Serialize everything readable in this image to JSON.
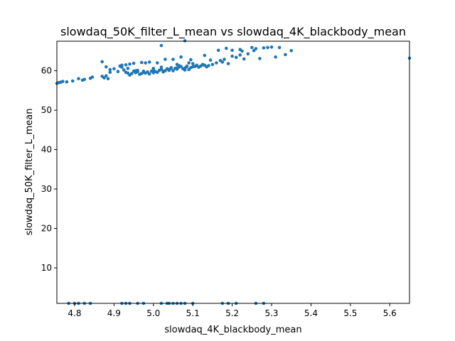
{
  "chart_data": {
    "type": "scatter",
    "title": "slowdaq_50K_filter_L_mean vs slowdaq_4K_blackbody_mean",
    "xlabel": "slowdaq_4K_blackbody_mean",
    "ylabel": "slowdaq_50K_filter_L_mean",
    "xlim": [
      4.755,
      5.65
    ],
    "ylim": [
      1.0,
      67.5
    ],
    "xticks": [
      "4.8",
      "4.9",
      "5.0",
      "5.1",
      "5.2",
      "5.3",
      "5.4",
      "5.5",
      "5.6"
    ],
    "yticks": [
      "10",
      "20",
      "30",
      "40",
      "50",
      "60"
    ],
    "grid": false,
    "marker_color": "#1f77b4",
    "series": [
      {
        "x": [
          4.755,
          4.76,
          4.765,
          4.77,
          4.78,
          4.795,
          4.81,
          4.82,
          4.825,
          4.84,
          4.845,
          4.87,
          4.875,
          4.88,
          4.885,
          4.89,
          4.9,
          4.91,
          4.915,
          4.92,
          4.925,
          4.93,
          4.935,
          4.94,
          4.945,
          4.95,
          4.955,
          4.96,
          4.965,
          4.97,
          4.975,
          4.98,
          4.985,
          4.99,
          4.995,
          5.0,
          5.005,
          5.01,
          5.015,
          5.02,
          5.025,
          5.03,
          5.035,
          5.04,
          5.045,
          5.05,
          5.055,
          5.06,
          5.065,
          5.07,
          5.075,
          5.08,
          5.085,
          5.09,
          5.095,
          5.1,
          5.105,
          5.11,
          5.115,
          5.12,
          5.125,
          5.13,
          5.135,
          5.14,
          5.15,
          5.16,
          5.17,
          5.175,
          5.18,
          5.19,
          5.2,
          5.21,
          5.22,
          5.225,
          5.23,
          5.24,
          5.26,
          5.27,
          5.28,
          5.29,
          5.31,
          5.32,
          5.335,
          5.35,
          5.65,
          4.87,
          4.88,
          4.89,
          4.93,
          4.95,
          4.97,
          4.99,
          5.01,
          5.03,
          5.05,
          5.07,
          5.09,
          5.11,
          5.13,
          4.92,
          4.96,
          5.0,
          5.04,
          5.08,
          5.12,
          4.94,
          4.98,
          5.02,
          5.06,
          5.1,
          4.935,
          4.955,
          4.975,
          5.0,
          5.025,
          5.045,
          5.065,
          5.085,
          5.105,
          5.125,
          5.145,
          5.165,
          5.185,
          5.2,
          5.22,
          5.25,
          5.255,
          5.3,
          5.02,
          5.08,
          5.095,
          5.06,
          4.785,
          4.8,
          4.81,
          4.825,
          4.84,
          4.92,
          4.93,
          4.94,
          4.96,
          4.975,
          5.02,
          5.035,
          5.04,
          5.05,
          5.06,
          5.07,
          5.08,
          5.1,
          5.175,
          5.19,
          5.21,
          5.26,
          5.28
        ],
        "y": [
          56.8,
          57.0,
          57.1,
          57.3,
          57.2,
          57.4,
          58.0,
          57.6,
          57.8,
          58.1,
          58.4,
          58.6,
          58.2,
          58.7,
          58.0,
          60.3,
          60.5,
          59.8,
          61.2,
          61.4,
          60.2,
          59.6,
          60.6,
          58.9,
          59.3,
          59.9,
          59.5,
          59.8,
          59.1,
          59.3,
          59.6,
          59.4,
          59.7,
          59.2,
          59.9,
          60.2,
          59.8,
          59.6,
          60.1,
          60.4,
          59.7,
          60.0,
          60.5,
          60.3,
          60.8,
          60.0,
          60.6,
          60.4,
          60.9,
          61.1,
          60.5,
          60.7,
          61.2,
          60.3,
          60.8,
          61.0,
          61.1,
          61.3,
          60.9,
          61.2,
          61.5,
          61.4,
          61.0,
          61.3,
          61.6,
          62.0,
          62.6,
          62.2,
          62.9,
          61.8,
          63.7,
          63.4,
          64.0,
          65.0,
          63.0,
          64.3,
          65.6,
          63.1,
          65.8,
          65.9,
          63.5,
          65.9,
          64.1,
          65.1,
          63.2,
          62.3,
          61.0,
          59.6,
          61.5,
          61.9,
          62.1,
          62.2,
          62.0,
          62.9,
          62.9,
          63.5,
          62.0,
          61.4,
          63.9,
          60.9,
          60.1,
          59.5,
          60.1,
          60.2,
          61.2,
          61.7,
          62.0,
          60.9,
          60.7,
          61.8,
          59.4,
          60.0,
          59.9,
          60.6,
          59.9,
          60.6,
          61.3,
          61.0,
          61.1,
          61.6,
          62.7,
          65.2,
          65.7,
          65.2,
          65.4,
          65.9,
          65.1,
          66.0,
          66.4,
          67.6,
          62.8,
          61.6,
          1.0,
          1.0,
          1.0,
          1.0,
          1.0,
          1.0,
          1.0,
          1.0,
          1.0,
          1.0,
          1.0,
          1.0,
          1.0,
          1.0,
          1.0,
          1.0,
          1.0,
          1.0,
          1.0,
          1.0,
          1.0,
          1.0,
          1.0
        ]
      }
    ]
  }
}
